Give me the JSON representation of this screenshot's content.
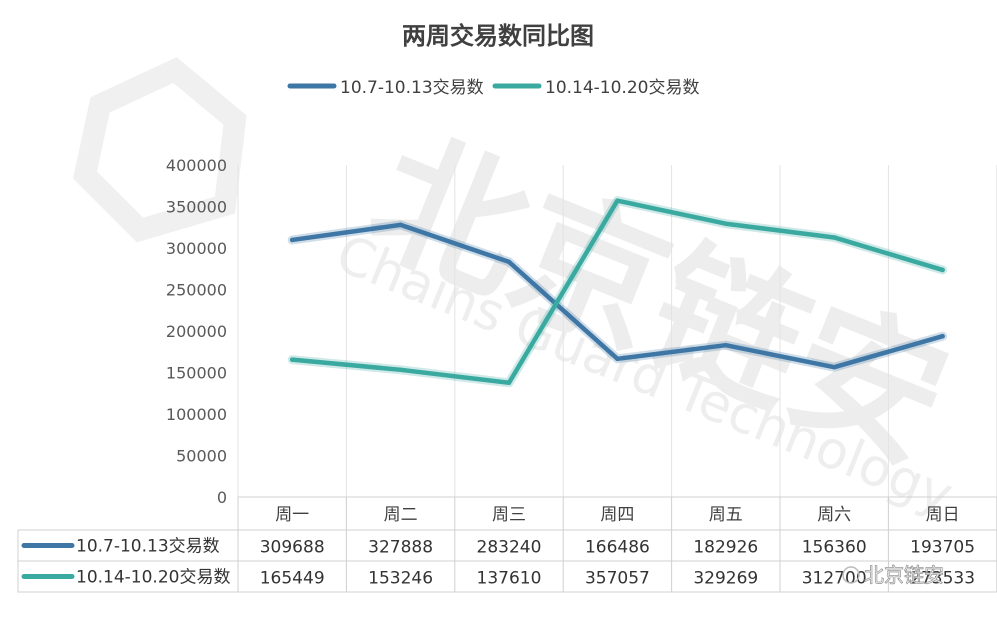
{
  "chart_data": {
    "type": "line",
    "title": "两周交易数同比图",
    "categories": [
      "周一",
      "周二",
      "周三",
      "周四",
      "周五",
      "周六",
      "周日"
    ],
    "series": [
      {
        "name": "10.7-10.13交易数",
        "color": "#3e76a5",
        "values": [
          309688,
          327888,
          283240,
          166486,
          182926,
          156360,
          193705
        ]
      },
      {
        "name": "10.14-10.20交易数",
        "color": "#3aa9a0",
        "values": [
          165449,
          153246,
          137610,
          357057,
          329269,
          312700,
          273533
        ]
      }
    ],
    "y_ticks": [
      0,
      50000,
      100000,
      150000,
      200000,
      250000,
      300000,
      350000,
      400000
    ],
    "ylim": [
      0,
      400000
    ],
    "legend_position": "top",
    "data_table": true,
    "table_rows": [
      [
        "309688",
        "327888",
        "283240",
        "166486",
        "182926",
        "156360",
        "193705"
      ],
      [
        "165449",
        "153246",
        "137610",
        "357057",
        "329269",
        "312700",
        "273533"
      ]
    ]
  },
  "watermark": {
    "text": "北京链安",
    "subtext": "Chains Guard Technology",
    "corner_text": "北京链安"
  }
}
